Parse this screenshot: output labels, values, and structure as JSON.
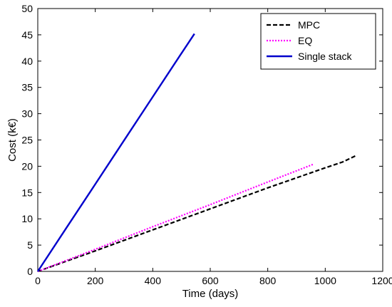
{
  "chart_data": {
    "type": "line",
    "xlabel": "Time (days)",
    "ylabel": "Cost (k€)",
    "xlim": [
      0,
      1200
    ],
    "ylim": [
      0,
      50
    ],
    "xticks": [
      "0",
      "200",
      "400",
      "600",
      "800",
      "1000",
      "1200"
    ],
    "yticks": [
      "0",
      "5",
      "10",
      "15",
      "20",
      "25",
      "30",
      "35",
      "40",
      "45",
      "50"
    ],
    "grid": false,
    "legend_position": "top-right",
    "series": [
      {
        "name": "MPC",
        "color": "#000000",
        "style": "dashed",
        "x": [
          0,
          200,
          400,
          600,
          800,
          1000,
          1060,
          1110
        ],
        "y": [
          0,
          3.9,
          7.9,
          11.9,
          15.9,
          19.7,
          20.8,
          22.1
        ]
      },
      {
        "name": "EQ",
        "color": "#ff00ff",
        "style": "dotted",
        "x": [
          0,
          200,
          400,
          600,
          800,
          960
        ],
        "y": [
          0,
          4.2,
          8.5,
          12.7,
          17.0,
          20.4
        ]
      },
      {
        "name": "Single stack",
        "color": "#0000cc",
        "style": "solid",
        "x": [
          0,
          100,
          200,
          300,
          400,
          500,
          545
        ],
        "y": [
          0,
          8.3,
          16.6,
          24.9,
          33.2,
          41.5,
          45.2
        ]
      }
    ]
  }
}
